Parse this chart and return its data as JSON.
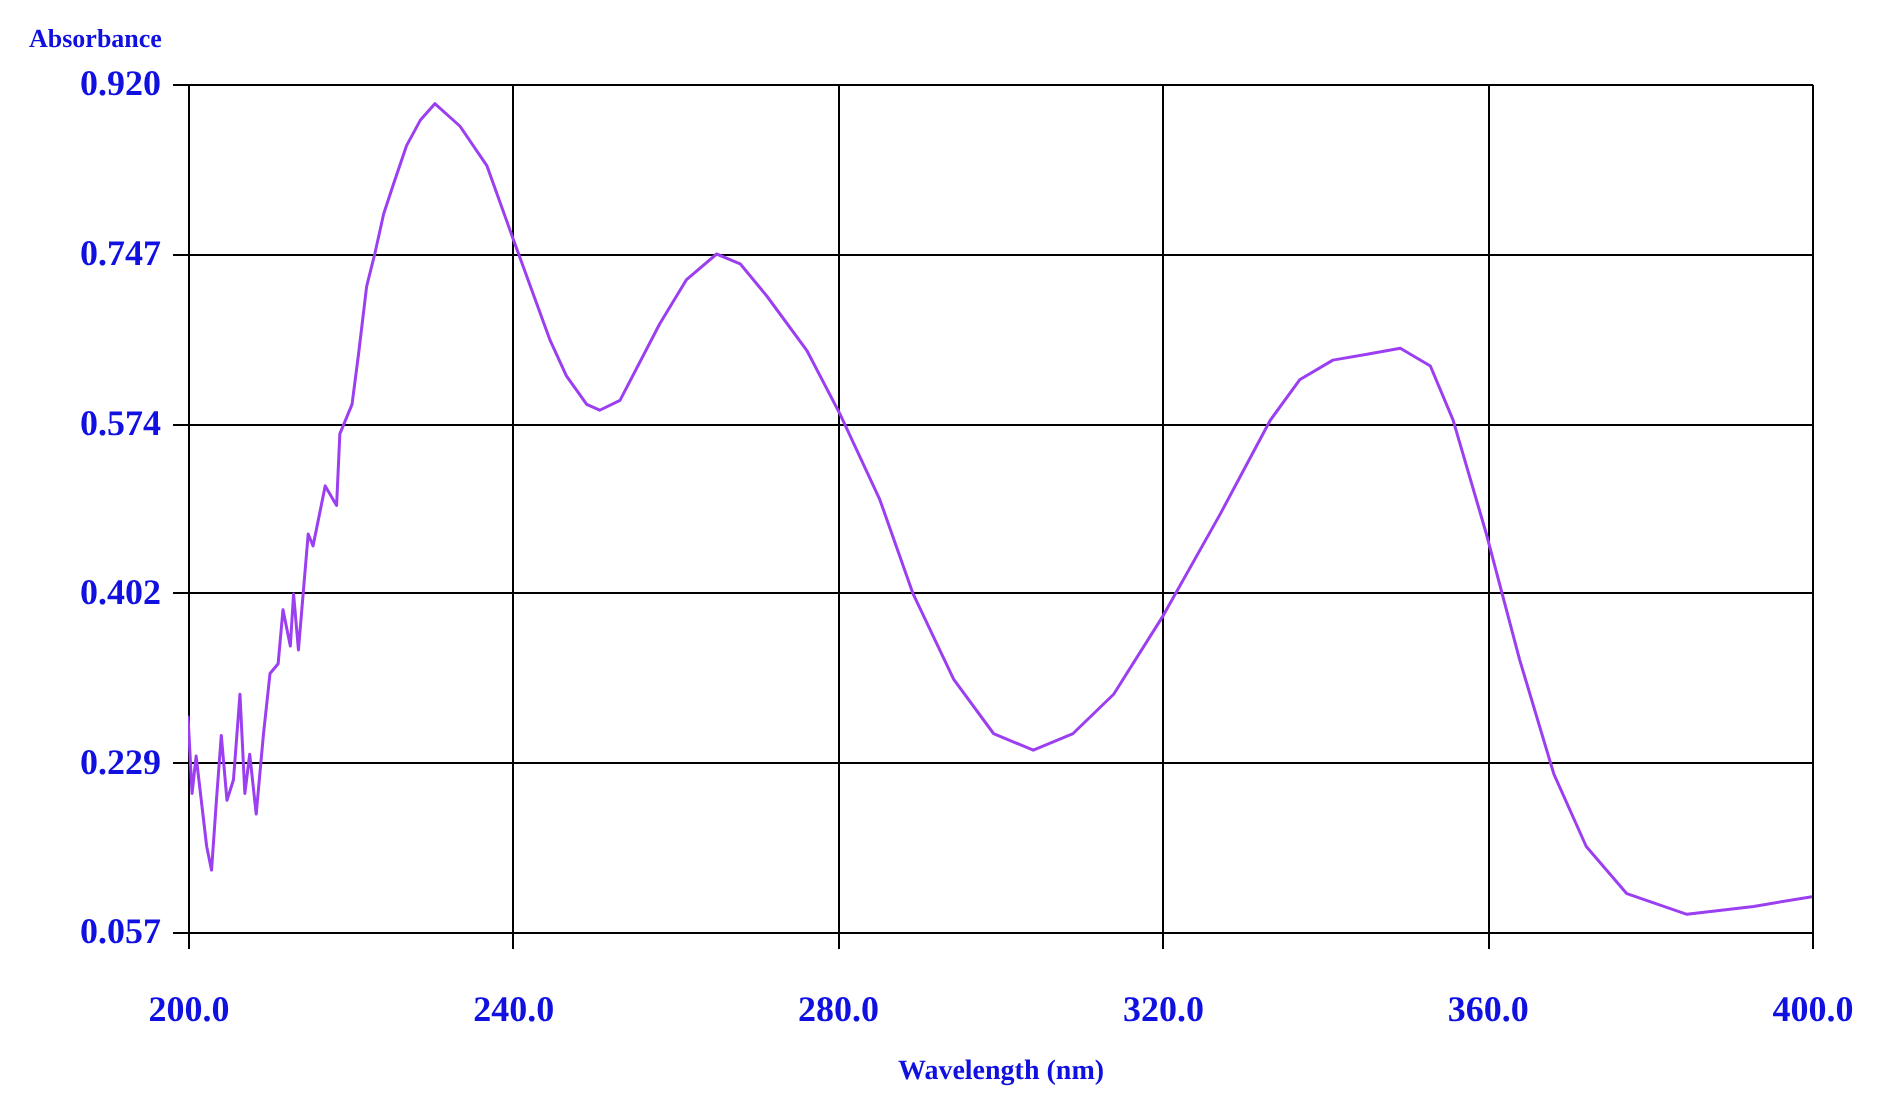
{
  "chart_data": {
    "type": "line",
    "xlabel": "Wavelength (nm)",
    "ylabel": "Absorbance",
    "xlim": [
      200,
      400
    ],
    "ylim": [
      0.057,
      0.92
    ],
    "xticks": [
      {
        "value": 200,
        "label": "200.0"
      },
      {
        "value": 240,
        "label": "240.0"
      },
      {
        "value": 280,
        "label": "280.0"
      },
      {
        "value": 320,
        "label": "320.0"
      },
      {
        "value": 360,
        "label": "360.0"
      },
      {
        "value": 400,
        "label": "400.0"
      }
    ],
    "yticks": [
      {
        "value": 0.057,
        "label": "0.057"
      },
      {
        "value": 0.229,
        "label": "0.229"
      },
      {
        "value": 0.402,
        "label": "0.402"
      },
      {
        "value": 0.574,
        "label": "0.574"
      },
      {
        "value": 0.747,
        "label": "0.747"
      },
      {
        "value": 0.92,
        "label": "0.920"
      }
    ],
    "grid": true,
    "series": [
      {
        "color": "#9b3ff0",
        "x": [
          200,
          200.5,
          201,
          202.3,
          202.9,
          203.5,
          204.1,
          204.8,
          205.6,
          206.4,
          207,
          207.6,
          208.4,
          209.3,
          210.1,
          211.1,
          211.7,
          212.6,
          213,
          213.6,
          214.8,
          215.4,
          216.9,
          218.3,
          218.7,
          220.2,
          221,
          222,
          223,
          224.1,
          225.3,
          226.9,
          228.6,
          230.4,
          233.5,
          236.8,
          240.1,
          244.6,
          246.6,
          249.1,
          250.7,
          253.2,
          258.1,
          261.4,
          265.1,
          268,
          271.3,
          276.2,
          280.3,
          285.2,
          289.3,
          294.3,
          299.2,
          304.1,
          309,
          314,
          320.1,
          327.1,
          333.3,
          336.9,
          341,
          345.2,
          349.3,
          353,
          355.8,
          359.9,
          364,
          368.2,
          372.2,
          377.2,
          384.6,
          392.8,
          400
        ],
        "values": [
          0.277,
          0.198,
          0.236,
          0.144,
          0.12,
          0.191,
          0.257,
          0.191,
          0.212,
          0.299,
          0.198,
          0.238,
          0.177,
          0.259,
          0.32,
          0.33,
          0.385,
          0.348,
          0.401,
          0.344,
          0.462,
          0.45,
          0.511,
          0.491,
          0.564,
          0.594,
          0.645,
          0.714,
          0.747,
          0.788,
          0.818,
          0.857,
          0.883,
          0.9,
          0.877,
          0.837,
          0.761,
          0.659,
          0.623,
          0.594,
          0.588,
          0.598,
          0.676,
          0.721,
          0.747,
          0.737,
          0.704,
          0.649,
          0.584,
          0.497,
          0.401,
          0.314,
          0.259,
          0.242,
          0.259,
          0.299,
          0.379,
          0.482,
          0.578,
          0.619,
          0.639,
          0.645,
          0.651,
          0.633,
          0.578,
          0.462,
          0.334,
          0.218,
          0.144,
          0.096,
          0.075,
          0.083,
          0.093
        ]
      }
    ]
  }
}
